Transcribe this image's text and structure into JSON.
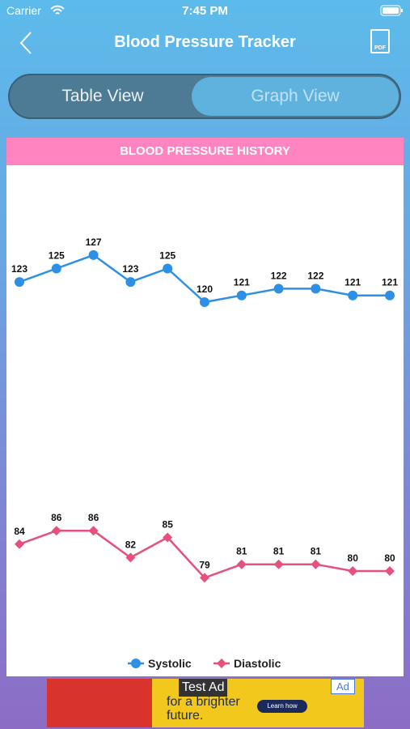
{
  "status_bar": {
    "carrier": "Carrier",
    "time": "7:45 PM"
  },
  "header": {
    "title": "Blood Pressure Tracker",
    "pdf_icon": "PDF"
  },
  "tabs": [
    "Table View",
    "Graph View"
  ],
  "chart_data": {
    "type": "line",
    "title": "BLOOD PRESSURE HISTORY",
    "categories": [
      null,
      null,
      null,
      null,
      null,
      null,
      null,
      null,
      null,
      null,
      null
    ],
    "ylim": [
      70,
      140
    ],
    "series": [
      {
        "name": "Systolic",
        "color": "#2e8fe6",
        "marker": "circle",
        "values": [
          123,
          125,
          127,
          123,
          125,
          120,
          121,
          122,
          122,
          121,
          121
        ]
      },
      {
        "name": "Diastolic",
        "color": "#e6507c",
        "marker": "diamond",
        "values": [
          84,
          86,
          86,
          82,
          85,
          79,
          81,
          81,
          81,
          80,
          80
        ]
      }
    ],
    "legend": "bottom"
  },
  "ad": {
    "badge": "Test Ad",
    "line1": "for a brighter",
    "line2": "future.",
    "button": "Learn how",
    "corner": "Ad"
  }
}
